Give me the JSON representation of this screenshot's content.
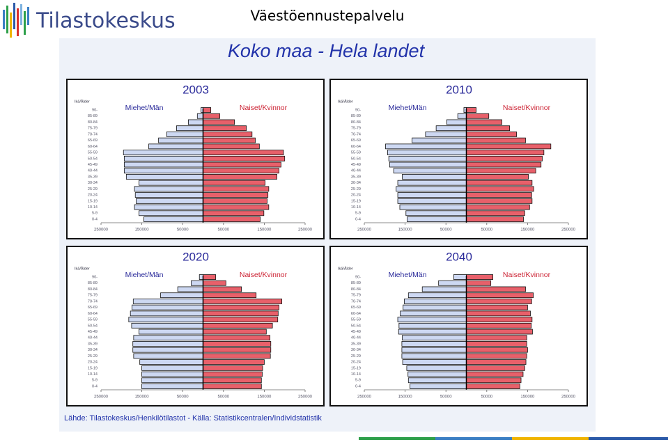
{
  "header": {
    "logo": "Tilastokeskus",
    "title": "Väestöennustepalvelu"
  },
  "slide_title": "Koko maa  -  Hela landet",
  "source": "Lähde: Tilastokeskus/Henkilötilastot  -  Källa: Statistikcentralen/Individstatistik",
  "chart_data": [
    {
      "type": "pyramid",
      "title": "2003",
      "y_label": "Ikä/Ålder",
      "categories": [
        "0-4",
        "5-9",
        "10-14",
        "15-19",
        "20-24",
        "25-29",
        "30-34",
        "35-39",
        "40-44",
        "45-49",
        "50-54",
        "55-59",
        "60-64",
        "65-69",
        "70-74",
        "75-79",
        "80-84",
        "85-89",
        "90-"
      ],
      "series": [
        {
          "name": "Miehet/Män",
          "color": "#cdd8f2",
          "values": [
            145000,
            157000,
            168000,
            164000,
            166000,
            168000,
            157000,
            188000,
            193000,
            193000,
            193000,
            195000,
            133000,
            109000,
            89000,
            65000,
            36000,
            14000,
            5000
          ]
        },
        {
          "name": "Naiset/Kvinnor",
          "color": "#e8606a",
          "values": [
            140000,
            149000,
            161000,
            157000,
            159000,
            161000,
            152000,
            181000,
            186000,
            191000,
            200000,
            197000,
            138000,
            128000,
            120000,
            106000,
            77000,
            41000,
            19000
          ]
        }
      ],
      "xlim": [
        -250000,
        250000
      ],
      "xticks": [
        {
          "value": -250000,
          "label": "250000"
        },
        {
          "value": -150000,
          "label": "150000"
        },
        {
          "value": -50000,
          "label": "50000"
        },
        50000,
        150000,
        250000
      ]
    },
    {
      "type": "pyramid",
      "title": "2010",
      "y_label": "Ikä/Ålder",
      "categories": [
        "0-4",
        "5-9",
        "10-14",
        "15-19",
        "20-24",
        "25-29",
        "30-34",
        "35-39",
        "40-44",
        "45-49",
        "50-54",
        "55-59",
        "60-64",
        "65-69",
        "70-74",
        "75-79",
        "80-84",
        "85-89",
        "90-"
      ],
      "series": [
        {
          "name": "Miehet/Män",
          "color": "#cdd8f2",
          "values": [
            145000,
            148000,
            163000,
            168000,
            168000,
            172000,
            168000,
            157000,
            178000,
            188000,
            190000,
            193000,
            198000,
            133000,
            100000,
            74000,
            48000,
            21000,
            6000
          ]
        },
        {
          "name": "Naiset/Kvinnor",
          "color": "#e8606a",
          "values": [
            140000,
            143000,
            155000,
            161000,
            160000,
            165000,
            161000,
            152000,
            170000,
            183000,
            186000,
            190000,
            207000,
            145000,
            123000,
            106000,
            87000,
            55000,
            24000
          ]
        }
      ],
      "xlim": [
        -250000,
        250000
      ],
      "xticks": [
        {
          "value": -250000,
          "label": "250000"
        },
        {
          "value": -150000,
          "label": "150000"
        },
        {
          "value": -50000,
          "label": "50000"
        },
        50000,
        150000,
        250000
      ]
    },
    {
      "type": "pyramid",
      "title": "2020",
      "y_label": "Ikä/Ålder",
      "categories": [
        "0-4",
        "5-9",
        "10-14",
        "15-19",
        "20-24",
        "25-29",
        "30-34",
        "35-39",
        "40-44",
        "45-49",
        "50-54",
        "55-59",
        "60-64",
        "65-69",
        "70-74",
        "75-79",
        "80-84",
        "85-89",
        "90-"
      ],
      "series": [
        {
          "name": "Miehet/Män",
          "color": "#cdd8f2",
          "values": [
            150000,
            150000,
            150000,
            150000,
            155000,
            170000,
            172000,
            172000,
            170000,
            157000,
            175000,
            182000,
            178000,
            174000,
            171000,
            104000,
            62000,
            29000,
            9000
          ]
        },
        {
          "name": "Naiset/Kvinnor",
          "color": "#e8606a",
          "values": [
            143000,
            143000,
            145000,
            146000,
            150000,
            165000,
            166000,
            166000,
            164000,
            155000,
            170000,
            183000,
            184000,
            186000,
            193000,
            130000,
            94000,
            56000,
            31000
          ]
        }
      ],
      "xlim": [
        -250000,
        250000
      ],
      "xticks": [
        {
          "value": -250000,
          "label": "250000"
        },
        {
          "value": -150000,
          "label": "150000"
        },
        {
          "value": -50000,
          "label": "50000"
        },
        50000,
        150000,
        250000
      ]
    },
    {
      "type": "pyramid",
      "title": "2040",
      "y_label": "Ikä/Ålder",
      "categories": [
        "0-4",
        "5-9",
        "10-14",
        "15-19",
        "20-24",
        "25-29",
        "30-34",
        "35-39",
        "40-44",
        "45-49",
        "50-54",
        "55-59",
        "60-64",
        "65-69",
        "70-74",
        "75-79",
        "80-84",
        "85-89",
        "90-"
      ],
      "series": [
        {
          "name": "Miehet/Män",
          "color": "#cdd8f2",
          "values": [
            138000,
            142000,
            143000,
            146000,
            156000,
            158000,
            158000,
            158000,
            157000,
            166000,
            165000,
            168000,
            162000,
            155000,
            152000,
            142000,
            108000,
            68000,
            31000
          ]
        },
        {
          "name": "Naiset/Kvinnor",
          "color": "#e8606a",
          "values": [
            131000,
            134000,
            139000,
            143000,
            146000,
            148000,
            150000,
            148000,
            148000,
            162000,
            159000,
            161000,
            157000,
            150000,
            160000,
            164000,
            145000,
            60000,
            65000
          ]
        }
      ],
      "xlim": [
        -250000,
        250000
      ],
      "xticks": [
        {
          "value": -250000,
          "label": "250000"
        },
        {
          "value": -150000,
          "label": "150000"
        },
        {
          "value": -50000,
          "label": "50000"
        },
        50000,
        150000,
        250000
      ]
    }
  ]
}
